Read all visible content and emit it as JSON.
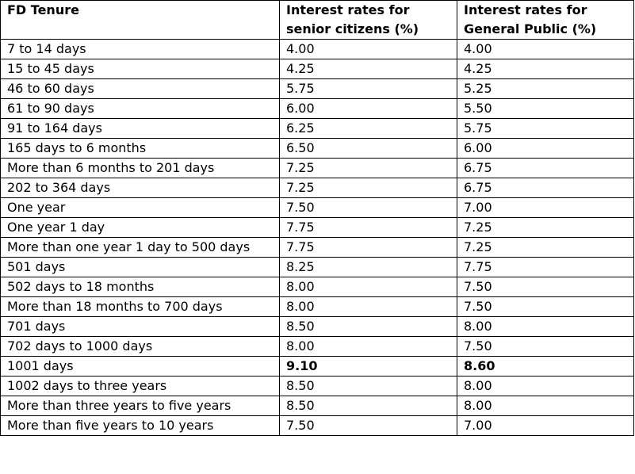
{
  "table": {
    "headers": [
      "FD Tenure",
      "Interest rates for senior citizens (%)",
      "Interest rates for General Public (%)"
    ],
    "rows": [
      [
        "7 to 14 days",
        "4.00",
        "4.00"
      ],
      [
        "15 to 45 days",
        "4.25",
        "4.25"
      ],
      [
        "46 to 60 days",
        "5.75",
        "5.25"
      ],
      [
        "61 to 90 days",
        "6.00",
        "5.50"
      ],
      [
        "91 to 164 days",
        "6.25",
        "5.75"
      ],
      [
        "165 days to 6 months",
        "6.50",
        "6.00"
      ],
      [
        "More than 6 months to 201 days",
        "7.25",
        "6.75"
      ],
      [
        "202 to 364 days",
        "7.25",
        "6.75"
      ],
      [
        "One year",
        "7.50",
        "7.00"
      ],
      [
        "One year 1 day",
        "7.75",
        "7.25"
      ],
      [
        "More than one year 1 day to 500 days",
        "7.75",
        "7.25"
      ],
      [
        "501 days",
        "8.25",
        "7.75"
      ],
      [
        "502 days to 18 months",
        "8.00",
        "7.50"
      ],
      [
        "More than 18 months to 700 days",
        "8.00",
        "7.50"
      ],
      [
        "701 days",
        "8.50",
        "8.00"
      ],
      [
        "702 days to 1000 days",
        "8.00",
        "7.50"
      ],
      [
        "1001 days",
        "9.10",
        "8.60"
      ],
      [
        "1002 days to three years",
        "8.50",
        "8.00"
      ],
      [
        "More than three years to five years",
        "8.50",
        "8.00"
      ],
      [
        "More than five years to 10 years",
        "7.50",
        "7.00"
      ]
    ],
    "highlighted_row": "1001 days"
  }
}
